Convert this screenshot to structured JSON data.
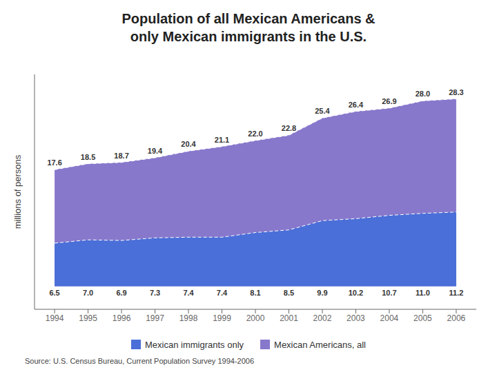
{
  "chart_data": {
    "type": "area",
    "title": "Population of all Mexican Americans &\nonly Mexican immigrants in the U.S.",
    "ylabel": "millions of persons",
    "source": "Source:  U.S. Census Bureau, Current Population Survey 1994-2006",
    "x": [
      1994,
      1995,
      1996,
      1997,
      1998,
      1999,
      2000,
      2001,
      2002,
      2003,
      2004,
      2005,
      2006
    ],
    "xlim": [
      1993.4,
      2006.6
    ],
    "xticks": [
      1994,
      1995,
      1996,
      1997,
      1998,
      1999,
      2000,
      2001,
      2002,
      2003,
      2004,
      2005,
      2006
    ],
    "ylim": [
      -3.5,
      32
    ],
    "yticks": [],
    "tick_labels": "x",
    "grid": false,
    "stacked": false,
    "data_labels": true,
    "legend": "bottom",
    "series": [
      {
        "name": "Mexican Americans, all",
        "color": "#8878CC",
        "line_style": "dashed",
        "values": [
          17.6,
          18.5,
          18.7,
          19.4,
          20.4,
          21.1,
          22.0,
          22.8,
          25.4,
          26.4,
          26.9,
          28.0,
          28.3
        ],
        "value_labels": [
          "17.6",
          "18.5",
          "18.7",
          "19.4",
          "20.4",
          "21.1",
          "22.0",
          "22.8",
          "25.4",
          "26.4",
          "26.9",
          "28.0",
          "28.3"
        ]
      },
      {
        "name": "Mexican immigrants only",
        "color": "#4B6FD8",
        "line_style": "dashed",
        "values": [
          6.5,
          7.0,
          6.9,
          7.3,
          7.4,
          7.4,
          8.1,
          8.5,
          9.9,
          10.2,
          10.7,
          11.0,
          11.2
        ],
        "value_labels": [
          "6.5",
          "7.0",
          "6.9",
          "7.3",
          "7.4",
          "7.4",
          "8.1",
          "8.5",
          "9.9",
          "10.2",
          "10.7",
          "11.0",
          "11.2"
        ]
      }
    ]
  }
}
